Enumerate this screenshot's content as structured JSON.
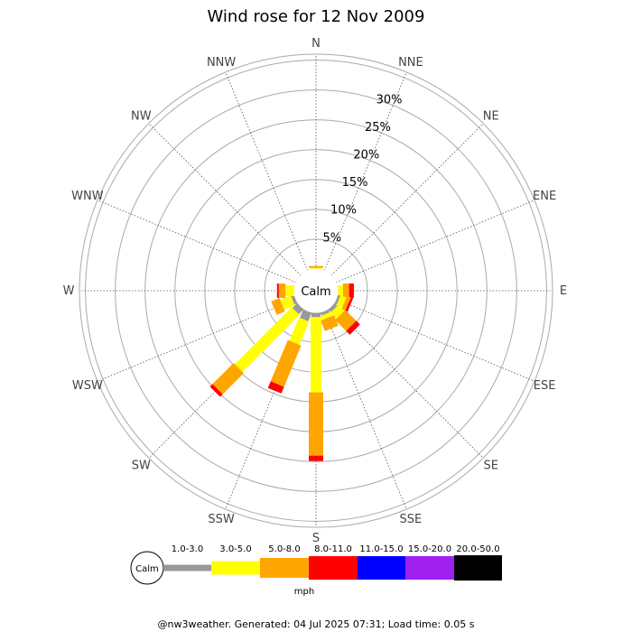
{
  "chart_data": {
    "type": "windrose",
    "title": "Wind rose for 12 Nov 2009",
    "directions": [
      "N",
      "NNE",
      "NE",
      "ENE",
      "E",
      "ESE",
      "SE",
      "SSE",
      "S",
      "SSW",
      "SW",
      "WSW",
      "W",
      "WNW",
      "NW",
      "NNW"
    ],
    "radial_ticks": [
      "5%",
      "10%",
      "15%",
      "20%",
      "25%",
      "30%"
    ],
    "radial_max_percent": 36,
    "center_label": "Calm",
    "speed_bins": [
      "1.0-3.0",
      "3.0-5.0",
      "5.0-8.0",
      "8.0-11.0",
      "11.0-15.0",
      "15.0-20.0",
      "20.0-50.0"
    ],
    "speed_unit": "mph",
    "colors": [
      "#999999",
      "#ffff00",
      "#ffa500",
      "#ff0000",
      "#0000ff",
      "#a020f0",
      "#000000"
    ],
    "calm_color": "#ffffff",
    "series": [
      {
        "direction": "N",
        "values": [
          0.0,
          0.2,
          0.3,
          0.0,
          0,
          0,
          0
        ]
      },
      {
        "direction": "NNE",
        "values": [
          0.0,
          0.0,
          0.0,
          0.0,
          0,
          0,
          0
        ]
      },
      {
        "direction": "NE",
        "values": [
          0.0,
          0.0,
          0.0,
          0.0,
          0,
          0,
          0
        ]
      },
      {
        "direction": "ENE",
        "values": [
          0.0,
          0.0,
          0.0,
          0.0,
          0,
          0,
          0
        ]
      },
      {
        "direction": "E",
        "values": [
          0.0,
          0.9,
          1.0,
          0.8,
          0,
          0,
          0
        ]
      },
      {
        "direction": "ESE",
        "values": [
          0.5,
          1.0,
          0.7,
          0.4,
          0,
          0,
          0
        ]
      },
      {
        "direction": "SE",
        "values": [
          0.7,
          1.4,
          2.6,
          0.9,
          0,
          0,
          0
        ]
      },
      {
        "direction": "SSE",
        "values": [
          0.6,
          0.7,
          1.9,
          0.0,
          0,
          0,
          0
        ]
      },
      {
        "direction": "S",
        "values": [
          0.8,
          12.6,
          10.6,
          0.9,
          0,
          0,
          0
        ]
      },
      {
        "direction": "SSW",
        "values": [
          1.6,
          4.2,
          7.5,
          1.2,
          0,
          0,
          0
        ]
      },
      {
        "direction": "SW",
        "values": [
          1.2,
          13.5,
          5.0,
          0.6,
          0,
          0,
          0
        ]
      },
      {
        "direction": "WSW",
        "values": [
          0.6,
          1.9,
          1.5,
          0.0,
          0,
          0,
          0
        ]
      },
      {
        "direction": "W",
        "values": [
          0.0,
          1.5,
          1.1,
          0.3,
          0,
          0,
          0
        ]
      },
      {
        "direction": "WNW",
        "values": [
          0.0,
          0.0,
          0.0,
          0.0,
          0,
          0,
          0
        ]
      },
      {
        "direction": "NW",
        "values": [
          0.0,
          0.0,
          0.0,
          0.0,
          0,
          0,
          0
        ]
      },
      {
        "direction": "NNW",
        "values": [
          0.0,
          0.0,
          0.0,
          0.0,
          0,
          0,
          0
        ]
      }
    ]
  },
  "footer": "@nw3weather. Generated: 04 Jul 2025 07:31; Load time: 0.05 s"
}
